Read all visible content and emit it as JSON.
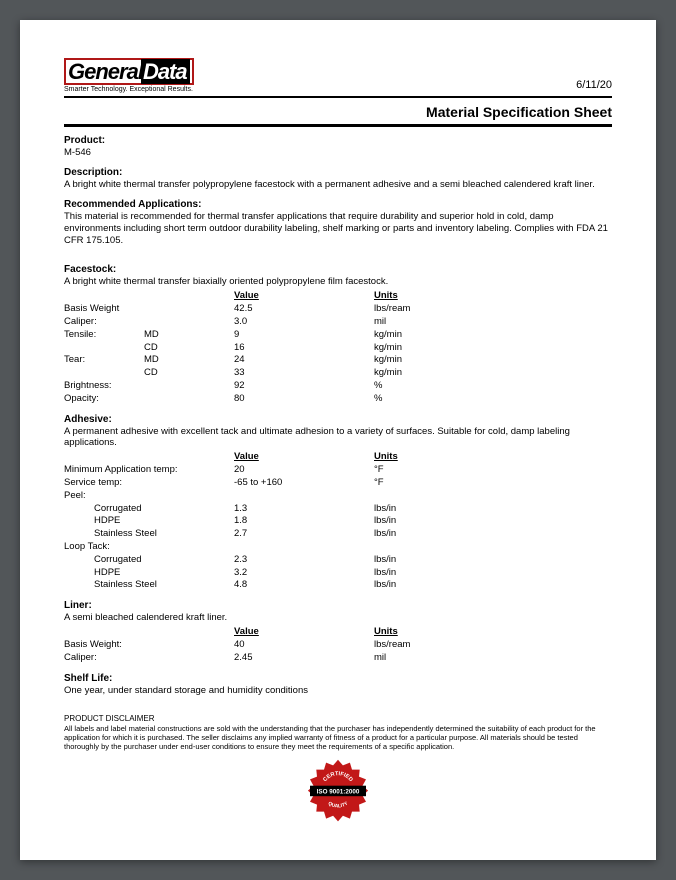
{
  "header": {
    "logo_part1": "General",
    "logo_part2": "Data",
    "tagline": "Smarter Technology. Exceptional Results.",
    "date": "6/11/20",
    "title": "Material Specification Sheet"
  },
  "product": {
    "label": "Product:",
    "value": "M-546"
  },
  "description": {
    "label": "Description:",
    "value": "A bright white thermal transfer polypropylene facestock with a permanent adhesive and a semi bleached calendered kraft liner."
  },
  "applications": {
    "label": "Recommended Applications:",
    "value": "This material is recommended for thermal transfer applications that require durability and superior hold in cold, damp environments including short term outdoor durability labeling, shelf marking or parts and inventory labeling. Complies with FDA 21 CFR 175.105."
  },
  "facestock": {
    "label": "Facestock:",
    "desc": "A bright white thermal transfer biaxially oriented polypropylene film facestock.",
    "col_value": "Value",
    "col_units": "Units",
    "rows": [
      {
        "prop": "Basis Weight",
        "sub": "",
        "val": "42.5",
        "unit": "lbs/ream"
      },
      {
        "prop": "Caliper:",
        "sub": "",
        "val": "3.0",
        "unit": "mil"
      },
      {
        "prop": "Tensile:",
        "sub": "MD",
        "val": "9",
        "unit": "kg/min"
      },
      {
        "prop": "",
        "sub": "CD",
        "val": "16",
        "unit": "kg/min"
      },
      {
        "prop": "Tear:",
        "sub": "MD",
        "val": "24",
        "unit": "kg/min"
      },
      {
        "prop": "",
        "sub": "CD",
        "val": "33",
        "unit": "kg/min"
      },
      {
        "prop": "Brightness:",
        "sub": "",
        "val": "92",
        "unit": "%"
      },
      {
        "prop": "Opacity:",
        "sub": "",
        "val": "80",
        "unit": "%"
      }
    ]
  },
  "adhesive": {
    "label": "Adhesive:",
    "desc": "A permanent adhesive with excellent tack and ultimate adhesion to a variety of surfaces. Suitable for cold, damp labeling applications.",
    "col_value": "Value",
    "col_units": "Units",
    "rows": [
      {
        "prop": "Minimum Application temp:",
        "val": "20",
        "unit": "°F"
      },
      {
        "prop": "Service temp:",
        "val": "-65 to +160",
        "unit": "°F"
      },
      {
        "prop": "Peel:",
        "val": "",
        "unit": ""
      },
      {
        "prop_indent": "Corrugated",
        "val": "1.3",
        "unit": "lbs/in"
      },
      {
        "prop_indent": "HDPE",
        "val": "1.8",
        "unit": "lbs/in"
      },
      {
        "prop_indent": "Stainless Steel",
        "val": "2.7",
        "unit": "lbs/in"
      },
      {
        "prop": "Loop Tack:",
        "val": "",
        "unit": ""
      },
      {
        "prop_indent": "Corrugated",
        "val": "2.3",
        "unit": "lbs/in"
      },
      {
        "prop_indent": "HDPE",
        "val": "3.2",
        "unit": "lbs/in"
      },
      {
        "prop_indent": "Stainless Steel",
        "val": "4.8",
        "unit": "lbs/in"
      }
    ]
  },
  "liner": {
    "label": "Liner:",
    "desc": "A semi bleached calendered kraft liner.",
    "col_value": "Value",
    "col_units": "Units",
    "rows": [
      {
        "prop": "Basis Weight:",
        "val": "40",
        "unit": "lbs/ream"
      },
      {
        "prop": "Caliper:",
        "val": "2.45",
        "unit": "mil"
      }
    ]
  },
  "shelf": {
    "label": "Shelf Life:",
    "value": "One year, under standard storage and humidity conditions"
  },
  "disclaimer": {
    "head": "PRODUCT DISCLAIMER",
    "body": "All labels and label material constructions are sold with the understanding that the purchaser has independently determined the suitability of each product for the application for which it is purchased. The seller disclaims any implied warranty of fitness of a product for a particular purpose. All materials should be tested thoroughly by the purchaser under end-user conditions to ensure they meet the requirements of a specific application."
  },
  "badge": {
    "top": "CERTIFIED",
    "mid": "ISO 9001:2000",
    "bottom": "QUALITY",
    "outer_color": "#c21818",
    "band_color": "#000000",
    "text_color": "#ffffff",
    "zig_color": "#e8c040"
  }
}
